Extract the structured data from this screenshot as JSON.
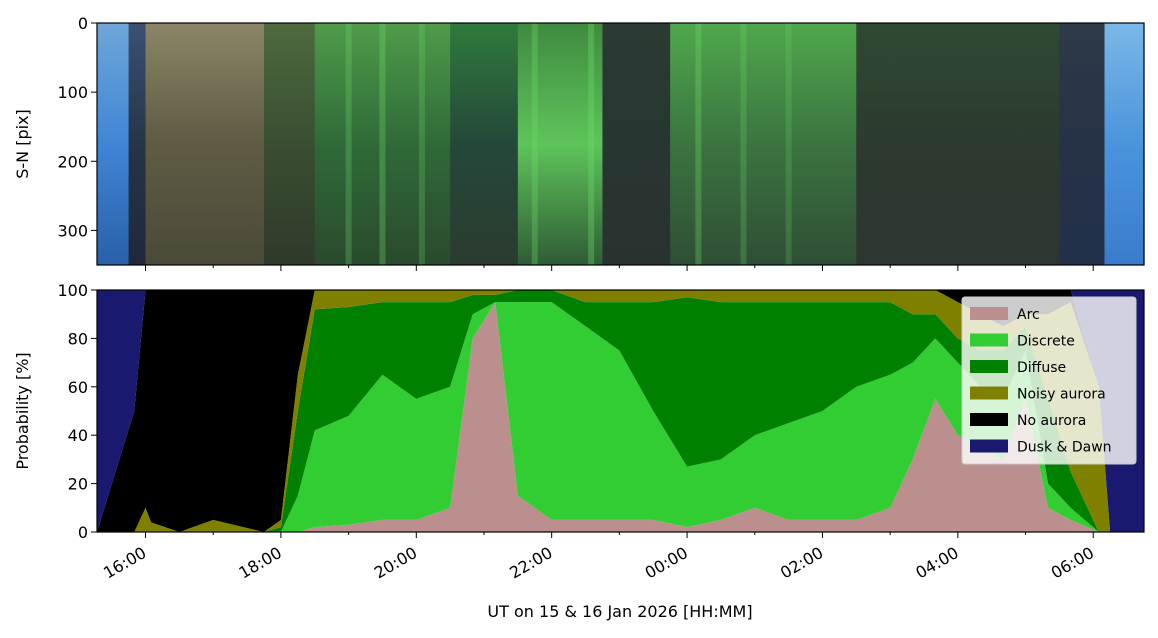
{
  "chart_data": [
    {
      "type": "heatmap",
      "description_kind": "keogram",
      "ylabel": "S-N [pix]",
      "ylim": [
        350,
        0
      ],
      "yticks": [
        0,
        100,
        200,
        300
      ],
      "ytick_labels": [
        "0",
        "100",
        "200",
        "300"
      ],
      "xlim": [
        "2026-01-15T15:17",
        "2026-01-16T06:45"
      ],
      "bands": [
        {
          "start": "2026-01-15T15:17",
          "end": "2026-01-15T15:45",
          "colors": [
            "#6fa6d8",
            "#3f86d6",
            "#2a5fa8"
          ]
        },
        {
          "start": "2026-01-15T15:45",
          "end": "2026-01-15T16:00",
          "colors": [
            "#3b5172",
            "#263548",
            "#20283a"
          ]
        },
        {
          "start": "2026-01-15T16:00",
          "end": "2026-01-15T17:45",
          "colors": [
            "#8a8666",
            "#5f5b44",
            "#4a4a38"
          ]
        },
        {
          "start": "2026-01-15T17:45",
          "end": "2026-01-15T18:30",
          "colors": [
            "#4e6a3e",
            "#3a4e32",
            "#2e3a2a"
          ]
        },
        {
          "start": "2026-01-15T18:30",
          "end": "2026-01-15T20:30",
          "colors": [
            "#4f9c4a",
            "#2f6a38",
            "#2a4a2e"
          ]
        },
        {
          "start": "2026-01-15T20:30",
          "end": "2026-01-15T21:30",
          "colors": [
            "#2f7a3c",
            "#24483a",
            "#2a3c2f"
          ]
        },
        {
          "start": "2026-01-15T21:30",
          "end": "2026-01-15T22:45",
          "colors": [
            "#3f8a40",
            "#5ec45a",
            "#2f5c36"
          ]
        },
        {
          "start": "2026-01-15T22:45",
          "end": "2026-01-15T23:45",
          "colors": [
            "#2c3a34",
            "#283632",
            "#2a3230"
          ]
        },
        {
          "start": "2026-01-15T23:45",
          "end": "2026-01-16T02:30",
          "colors": [
            "#4fa84c",
            "#3b7440",
            "#2f4e35"
          ]
        },
        {
          "start": "2026-01-16T02:30",
          "end": "2026-01-16T05:30",
          "colors": [
            "#2f4a32",
            "#2c3a2f",
            "#2d3530"
          ]
        },
        {
          "start": "2026-01-16T05:30",
          "end": "2026-01-16T06:10",
          "colors": [
            "#2e3a48",
            "#263246",
            "#22304a"
          ]
        },
        {
          "start": "2026-01-16T06:10",
          "end": "2026-01-16T06:45",
          "colors": [
            "#7ab8e8",
            "#4a94dc",
            "#3a7ccc"
          ]
        }
      ],
      "streaks": [
        {
          "x": "2026-01-15T19:00",
          "brightness": 0.8
        },
        {
          "x": "2026-01-15T19:30",
          "brightness": 0.9
        },
        {
          "x": "2026-01-15T20:05",
          "brightness": 0.7
        },
        {
          "x": "2026-01-15T21:45",
          "brightness": 0.9
        },
        {
          "x": "2026-01-15T22:35",
          "brightness": 1.0
        },
        {
          "x": "2026-01-16T00:10",
          "brightness": 0.9
        },
        {
          "x": "2026-01-16T00:50",
          "brightness": 0.7
        },
        {
          "x": "2026-01-16T01:30",
          "brightness": 0.6
        }
      ]
    },
    {
      "type": "area",
      "stacked": true,
      "ylabel": "Probability [%]",
      "ylim": [
        0,
        100
      ],
      "yticks": [
        0,
        20,
        40,
        60,
        80,
        100
      ],
      "ytick_labels": [
        "0",
        "20",
        "40",
        "60",
        "80",
        "100"
      ],
      "xlabel": "UT on 15 & 16 Jan 2026 [HH:MM]",
      "xlim": [
        "2026-01-15T15:17",
        "2026-01-16T06:45"
      ],
      "xticks": [
        "2026-01-15T16:00",
        "2026-01-15T18:00",
        "2026-01-15T20:00",
        "2026-01-15T22:00",
        "2026-01-16T00:00",
        "2026-01-16T02:00",
        "2026-01-16T04:00",
        "2026-01-16T06:00"
      ],
      "xtick_labels": [
        "16:00",
        "18:00",
        "20:00",
        "22:00",
        "00:00",
        "02:00",
        "04:00",
        "06:00"
      ],
      "legend_position": "upper right",
      "series": [
        {
          "name": "Arc",
          "color": "#bc8f8f"
        },
        {
          "name": "Discrete",
          "color": "#32cd32"
        },
        {
          "name": "Diffuse",
          "color": "#008000"
        },
        {
          "name": "Noisy aurora",
          "color": "#808000"
        },
        {
          "name": "No aurora",
          "color": "#000000"
        },
        {
          "name": "Dusk & Dawn",
          "color": "#191970"
        }
      ],
      "x": [
        "2026-01-15T15:17",
        "2026-01-15T15:50",
        "2026-01-15T16:00",
        "2026-01-15T16:05",
        "2026-01-15T16:30",
        "2026-01-15T17:00",
        "2026-01-15T17:45",
        "2026-01-15T18:00",
        "2026-01-15T18:15",
        "2026-01-15T18:30",
        "2026-01-15T19:00",
        "2026-01-15T19:30",
        "2026-01-15T20:00",
        "2026-01-15T20:30",
        "2026-01-15T20:50",
        "2026-01-15T21:10",
        "2026-01-15T21:30",
        "2026-01-15T22:00",
        "2026-01-15T22:30",
        "2026-01-15T23:00",
        "2026-01-15T23:30",
        "2026-01-16T00:00",
        "2026-01-16T00:30",
        "2026-01-16T01:00",
        "2026-01-16T01:30",
        "2026-01-16T02:00",
        "2026-01-16T02:30",
        "2026-01-16T03:00",
        "2026-01-16T03:20",
        "2026-01-16T03:40",
        "2026-01-16T04:00",
        "2026-01-16T04:20",
        "2026-01-16T04:40",
        "2026-01-16T05:00",
        "2026-01-16T05:20",
        "2026-01-16T05:40",
        "2026-01-16T06:05",
        "2026-01-16T06:15",
        "2026-01-16T06:45"
      ],
      "values": {
        "Arc": [
          0,
          0,
          0,
          0,
          0,
          0,
          0,
          0,
          0,
          2,
          3,
          5,
          5,
          10,
          80,
          95,
          15,
          5,
          5,
          5,
          5,
          2,
          5,
          10,
          5,
          5,
          5,
          10,
          30,
          55,
          40,
          35,
          30,
          55,
          10,
          5,
          0,
          0,
          0
        ],
        "Discrete": [
          0,
          0,
          0,
          0,
          0,
          0,
          0,
          0,
          15,
          40,
          45,
          60,
          50,
          50,
          10,
          0,
          80,
          90,
          80,
          70,
          45,
          25,
          25,
          30,
          40,
          45,
          55,
          55,
          40,
          25,
          30,
          25,
          25,
          20,
          10,
          5,
          0,
          0,
          0
        ],
        "Diffuse": [
          0,
          0,
          0,
          0,
          0,
          0,
          0,
          2,
          35,
          50,
          45,
          30,
          40,
          35,
          8,
          3,
          5,
          5,
          10,
          20,
          45,
          70,
          65,
          55,
          50,
          45,
          35,
          30,
          20,
          10,
          10,
          15,
          20,
          10,
          35,
          15,
          0,
          0,
          0
        ],
        "Noisy aurora": [
          0,
          0,
          10,
          4,
          0,
          5,
          0,
          3,
          15,
          8,
          7,
          5,
          5,
          5,
          2,
          2,
          0,
          0,
          5,
          5,
          5,
          3,
          5,
          5,
          5,
          5,
          5,
          5,
          10,
          10,
          15,
          15,
          10,
          5,
          35,
          70,
          60,
          0,
          0
        ],
        "No aurora": [
          0,
          50,
          90,
          96,
          100,
          95,
          100,
          95,
          35,
          0,
          0,
          0,
          0,
          0,
          0,
          0,
          0,
          0,
          0,
          0,
          0,
          0,
          0,
          0,
          0,
          0,
          0,
          0,
          0,
          0,
          5,
          10,
          15,
          10,
          10,
          5,
          0,
          0,
          0
        ],
        "Dusk & Dawn": [
          100,
          50,
          0,
          0,
          0,
          0,
          0,
          0,
          0,
          0,
          0,
          0,
          0,
          0,
          0,
          0,
          0,
          0,
          0,
          0,
          0,
          0,
          0,
          0,
          0,
          0,
          0,
          0,
          0,
          0,
          0,
          0,
          0,
          0,
          0,
          0,
          40,
          100,
          100
        ]
      }
    }
  ]
}
